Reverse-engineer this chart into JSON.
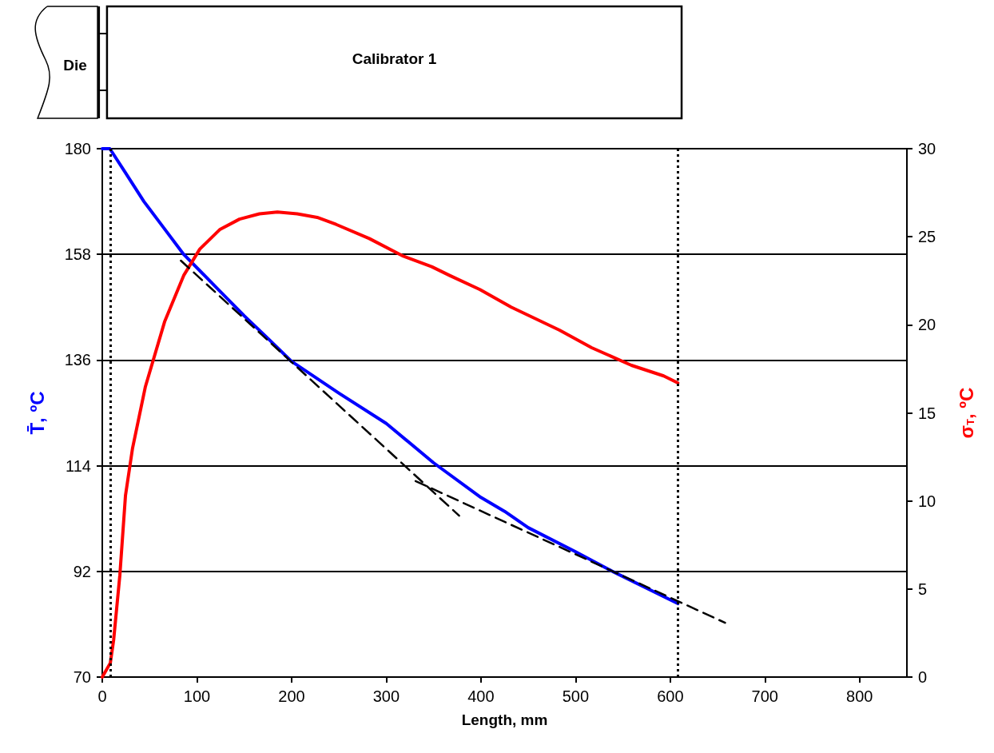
{
  "chart_data": {
    "type": "line",
    "xlabel": "Length, mm",
    "ylabel": "T̄, ºC",
    "y2label": "σ$_{T}$, ºC",
    "annotations": [
      "Die",
      "Calibrator 1"
    ],
    "xlim": [
      0,
      850
    ],
    "xticks": [
      0,
      100,
      200,
      300,
      400,
      500,
      600,
      700,
      800
    ],
    "ylim": [
      70,
      180
    ],
    "yticks": [
      70,
      92,
      114,
      136,
      158,
      180
    ],
    "y2lim": [
      0,
      30
    ],
    "y2ticks": [
      0,
      5,
      10,
      15,
      20,
      25,
      30
    ],
    "grid": "y",
    "marker": "none",
    "series": [
      {
        "color": "#0000ff",
        "line_style": "solid",
        "x": [
          0,
          8,
          24.5,
          44,
          65,
          86,
          106,
          125,
          150,
          175,
          200,
          250,
          300,
          350,
          400,
          425,
          450,
          500,
          540,
          608
        ],
        "values": [
          180,
          180,
          175,
          169,
          163.5,
          158,
          154,
          150.2,
          145.2,
          140.5,
          135.7,
          129.1,
          122.8,
          114.6,
          107.4,
          104.5,
          101.1,
          96.1,
          91.9,
          85.3
        ]
      },
      {
        "color": "#ff0000",
        "line_style": "solid",
        "axis": "y2",
        "x": [
          0,
          8.5,
          12,
          18.6,
          24.5,
          32,
          45.6,
          66,
          86,
          103,
          124,
          145,
          166,
          185,
          206,
          227,
          247,
          282,
          318,
          348,
          367,
          399,
          432,
          483,
          517,
          559,
          593,
          608
        ],
        "values": [
          0,
          0.8,
          2.1,
          5.8,
          10.3,
          13,
          16.5,
          20.2,
          22.8,
          24.3,
          25.4,
          26,
          26.3,
          26.4,
          26.3,
          26.1,
          25.7,
          24.9,
          23.9,
          23.3,
          22.8,
          22,
          21,
          19.7,
          18.7,
          17.7,
          17.1,
          16.7
        ]
      },
      {
        "color": "#000000",
        "line_style": "dashed",
        "x": [
          83,
          377
        ],
        "values": [
          156.7,
          103.6
        ]
      },
      {
        "color": "#000000",
        "line_style": "dashed",
        "x": [
          331,
          658
        ],
        "values": [
          110.8,
          81.3
        ]
      }
    ],
    "ref_lines": [
      {
        "axis": "x",
        "value": 8.5,
        "color": "#000000",
        "line_style": "dotted"
      },
      {
        "axis": "x",
        "value": 608,
        "color": "#000000",
        "line_style": "dotted"
      }
    ]
  }
}
